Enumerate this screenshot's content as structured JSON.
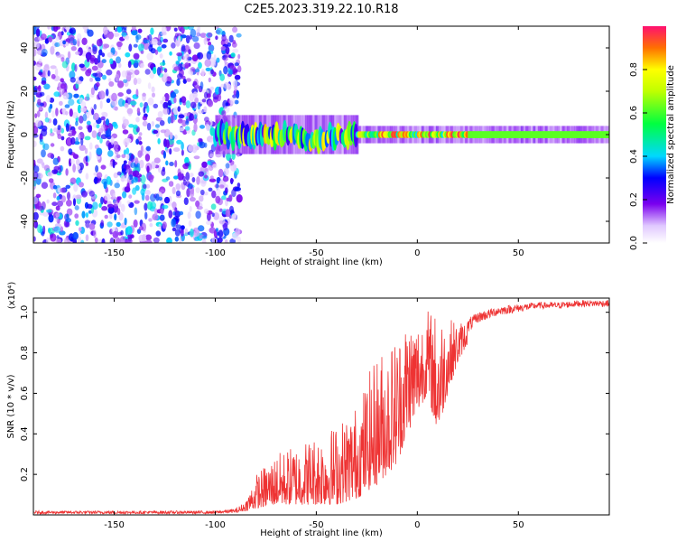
{
  "title": "C2E5.2023.319.22.10.R18",
  "chart_data": [
    {
      "type": "heatmap",
      "xlabel": "Height of straight line (km)",
      "ylabel": "Frequency (Hz)",
      "xlim": [
        -190,
        95
      ],
      "ylim": [
        -50,
        50
      ],
      "xticks": [
        -150,
        -100,
        -50,
        0,
        50
      ],
      "yticks": [
        -40,
        -20,
        0,
        20,
        40
      ],
      "colorbar": {
        "label": "Normalized spectral amplitude",
        "range": [
          0,
          1
        ],
        "ticks": [
          0.0,
          0.2,
          0.4,
          0.6,
          0.8
        ],
        "tick_labels": [
          "0.0",
          "0.2",
          "0.4",
          "0.6",
          "0.8"
        ]
      },
      "regions": [
        {
          "name": "noise",
          "x": [
            -190,
            -88
          ],
          "freq": [
            -50,
            50
          ],
          "amplitude": [
            0.05,
            0.45
          ]
        },
        {
          "name": "signal-band-onset",
          "x": [
            -100,
            -30
          ],
          "freq": [
            -8,
            6
          ],
          "amplitude": [
            0.2,
            0.85
          ]
        },
        {
          "name": "signal-band-steady",
          "x": [
            -30,
            95
          ],
          "freq": [
            -3,
            3
          ],
          "amplitude": [
            0.4,
            1.0
          ]
        }
      ]
    },
    {
      "type": "line",
      "xlabel": "Height of straight line (km)",
      "ylabel": "SNR (10 * v/v)",
      "y_scale_label": "(x10⁴)",
      "xlim": [
        -190,
        95
      ],
      "ylim": [
        0,
        1.07
      ],
      "xticks": [
        -150,
        -100,
        -50,
        0,
        50
      ],
      "yticks": [
        0.2,
        0.4,
        0.6,
        0.8,
        1.0
      ],
      "ytick_labels": [
        "0.2",
        "0.4",
        "0.6",
        "0.8",
        "1.0"
      ],
      "series": [
        {
          "name": "SNR",
          "color": "#ee3333",
          "envelope": {
            "x": [
              -190,
              -100,
              -90,
              -85,
              -80,
              -70,
              -60,
              -50,
              -40,
              -30,
              -20,
              -10,
              -5,
              0,
              5,
              10,
              15,
              20,
              25,
              30,
              40,
              50,
              60,
              70,
              80,
              95
            ],
            "low": [
              0.005,
              0.005,
              0.01,
              0.02,
              0.03,
              0.05,
              0.05,
              0.05,
              0.05,
              0.08,
              0.15,
              0.25,
              0.4,
              0.5,
              0.6,
              0.4,
              0.6,
              0.75,
              0.85,
              0.92,
              0.96,
              0.98,
              1.0,
              1.0,
              1.01,
              1.01
            ],
            "high": [
              0.02,
              0.02,
              0.03,
              0.07,
              0.2,
              0.3,
              0.35,
              0.4,
              0.45,
              0.55,
              0.8,
              0.9,
              1.0,
              0.98,
              1.02,
              1.0,
              0.98,
              0.95,
              0.97,
              1.0,
              1.03,
              1.04,
              1.05,
              1.05,
              1.06,
              1.06
            ]
          }
        }
      ]
    }
  ]
}
